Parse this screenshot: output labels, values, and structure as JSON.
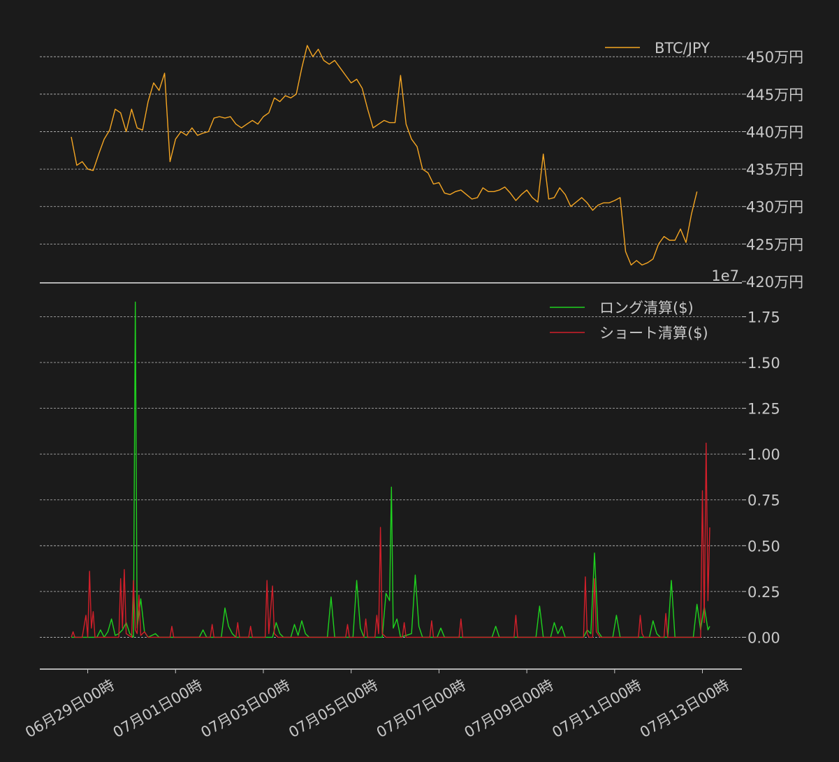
{
  "colors": {
    "background": "#1b1b1b",
    "btc": "#f5a623",
    "long": "#1fd11f",
    "short": "#d11f2a",
    "grid": "#bdbdbd",
    "text": "#c8c8c8"
  },
  "chart_data": [
    {
      "type": "line",
      "title": "",
      "xlabel": "",
      "ylabel": "",
      "x_range_days": [
        "06/28 15:00",
        "07/13 09:00"
      ],
      "ylim": [
        4200000,
        4530000
      ],
      "y_ticks": [
        4200000,
        4250000,
        4300000,
        4350000,
        4400000,
        4450000,
        4500000
      ],
      "y_tick_labels": [
        "420万円",
        "425万円",
        "430万円",
        "435万円",
        "440万円",
        "445万円",
        "450万円"
      ],
      "offset_label": "1e7",
      "grid": true,
      "legend": "top-right",
      "series": [
        {
          "name": "BTC/JPY",
          "x_hours": [
            0,
            3,
            6,
            9,
            12,
            15,
            18,
            21,
            24,
            27,
            30,
            33,
            36,
            39,
            42,
            45,
            48,
            51,
            54,
            57,
            60,
            63,
            66,
            69,
            72,
            75,
            78,
            81,
            84,
            87,
            90,
            93,
            96,
            99,
            102,
            105,
            108,
            111,
            114,
            117,
            120,
            123,
            126,
            129,
            132,
            135,
            138,
            141,
            144,
            147,
            150,
            153,
            156,
            159,
            162,
            165,
            168,
            171,
            174,
            177,
            180,
            183,
            186,
            189,
            192,
            195,
            198,
            201,
            204,
            207,
            210,
            213,
            216,
            219,
            222,
            225,
            228,
            231,
            234,
            237,
            240,
            243,
            246,
            249,
            252,
            255,
            258,
            261,
            264,
            267,
            270,
            273,
            276,
            279,
            282,
            285,
            288,
            291,
            294,
            297,
            300,
            303,
            306,
            309,
            312,
            315,
            318,
            321,
            324,
            327,
            330,
            333,
            336,
            339,
            342
          ],
          "values": [
            4393000,
            4355000,
            4360000,
            4350000,
            4348000,
            4370000,
            4390000,
            4402000,
            4430000,
            4425000,
            4400000,
            4430000,
            4405000,
            4402000,
            4440000,
            4465000,
            4455000,
            4478000,
            4360000,
            4390000,
            4400000,
            4395000,
            4405000,
            4395000,
            4398000,
            4400000,
            4418000,
            4420000,
            4418000,
            4420000,
            4410000,
            4405000,
            4410000,
            4415000,
            4410000,
            4420000,
            4425000,
            4445000,
            4440000,
            4448000,
            4445000,
            4450000,
            4485000,
            4515000,
            4500000,
            4510000,
            4495000,
            4490000,
            4495000,
            4485000,
            4475000,
            4465000,
            4470000,
            4458000,
            4430000,
            4405000,
            4410000,
            4415000,
            4412000,
            4412000,
            4475000,
            4410000,
            4390000,
            4380000,
            4350000,
            4345000,
            4330000,
            4332000,
            4318000,
            4316000,
            4320000,
            4322000,
            4316000,
            4310000,
            4312000,
            4325000,
            4320000,
            4320000,
            4322000,
            4326000,
            4318000,
            4308000,
            4316000,
            4322000,
            4312000,
            4306000,
            4370000,
            4310000,
            4312000,
            4325000,
            4316000,
            4300000,
            4306000,
            4312000,
            4305000,
            4295000,
            4302000,
            4305000,
            4305000,
            4308000,
            4312000,
            4240000,
            4222000,
            4228000,
            4222000,
            4225000,
            4230000,
            4250000,
            4260000,
            4255000,
            4255000,
            4270000,
            4252000,
            4290000,
            4320000
          ]
        }
      ]
    },
    {
      "type": "line",
      "title": "",
      "xlabel": "",
      "ylabel": "",
      "ylim": [
        -0.17,
        1.87
      ],
      "y_ticks": [
        0,
        0.25,
        0.5,
        0.75,
        1.0,
        1.25,
        1.5,
        1.75
      ],
      "y_tick_labels": [
        "0.00",
        "0.25",
        "0.50",
        "0.75",
        "1.00",
        "1.25",
        "1.50",
        "1.75"
      ],
      "grid": true,
      "legend": "top-right",
      "categories": [
        "06月29日00時",
        "07月01日00時",
        "07月03日00時",
        "07月05日00時",
        "07月07日00時",
        "07月09日00時",
        "07月11日00時",
        "07月13日00時"
      ],
      "category_hours": [
        9,
        57,
        105,
        153,
        201,
        249,
        297,
        345
      ],
      "series": [
        {
          "name": "ロング清算($)",
          "color": "long",
          "points": [
            [
              0,
              0
            ],
            [
              14,
              0
            ],
            [
              16,
              0.04
            ],
            [
              18,
              0
            ],
            [
              20,
              0.03
            ],
            [
              22,
              0.1
            ],
            [
              24,
              0.01
            ],
            [
              26,
              0.02
            ],
            [
              28,
              0.04
            ],
            [
              30,
              0.08
            ],
            [
              32,
              0.02
            ],
            [
              34,
              0
            ],
            [
              35,
              1.83
            ],
            [
              36,
              0.05
            ],
            [
              38,
              0.21
            ],
            [
              40,
              0.03
            ],
            [
              42,
              0
            ],
            [
              46,
              0.02
            ],
            [
              48,
              0
            ],
            [
              70,
              0
            ],
            [
              72,
              0.04
            ],
            [
              74,
              0
            ],
            [
              82,
              0
            ],
            [
              84,
              0.16
            ],
            [
              86,
              0.06
            ],
            [
              88,
              0.02
            ],
            [
              90,
              0
            ],
            [
              110,
              0
            ],
            [
              112,
              0.08
            ],
            [
              114,
              0.02
            ],
            [
              116,
              0
            ],
            [
              120,
              0
            ],
            [
              122,
              0.07
            ],
            [
              124,
              0.01
            ],
            [
              126,
              0.09
            ],
            [
              128,
              0.02
            ],
            [
              130,
              0
            ],
            [
              140,
              0
            ],
            [
              142,
              0.22
            ],
            [
              144,
              0
            ],
            [
              154,
              0
            ],
            [
              156,
              0.31
            ],
            [
              158,
              0.05
            ],
            [
              160,
              0
            ],
            [
              170,
              0
            ],
            [
              172,
              0.24
            ],
            [
              174,
              0.2
            ],
            [
              175,
              0.82
            ],
            [
              176,
              0.05
            ],
            [
              178,
              0.1
            ],
            [
              180,
              0
            ],
            [
              186,
              0.02
            ],
            [
              188,
              0.34
            ],
            [
              190,
              0.06
            ],
            [
              192,
              0
            ],
            [
              200,
              0
            ],
            [
              202,
              0.05
            ],
            [
              204,
              0
            ],
            [
              230,
              0
            ],
            [
              232,
              0.06
            ],
            [
              234,
              0
            ],
            [
              254,
              0
            ],
            [
              256,
              0.17
            ],
            [
              258,
              0
            ],
            [
              262,
              0
            ],
            [
              264,
              0.08
            ],
            [
              266,
              0.02
            ],
            [
              268,
              0.06
            ],
            [
              270,
              0
            ],
            [
              280,
              0
            ],
            [
              282,
              0.04
            ],
            [
              284,
              0.02
            ],
            [
              286,
              0.46
            ],
            [
              288,
              0.03
            ],
            [
              290,
              0
            ],
            [
              296,
              0
            ],
            [
              298,
              0.12
            ],
            [
              300,
              0
            ],
            [
              316,
              0
            ],
            [
              318,
              0.09
            ],
            [
              320,
              0.02
            ],
            [
              322,
              0
            ],
            [
              326,
              0
            ],
            [
              328,
              0.31
            ],
            [
              330,
              0
            ],
            [
              340,
              0
            ],
            [
              342,
              0.18
            ],
            [
              344,
              0.04
            ],
            [
              346,
              0.17
            ],
            [
              348,
              0.04
            ],
            [
              349,
              0.06
            ]
          ]
        },
        {
          "name": "ショート清算($)",
          "color": "short",
          "points": [
            [
              0,
              0
            ],
            [
              1,
              0.03
            ],
            [
              2,
              0
            ],
            [
              6,
              0
            ],
            [
              8,
              0.12
            ],
            [
              9,
              0
            ],
            [
              10,
              0.36
            ],
            [
              11,
              0.05
            ],
            [
              12,
              0.14
            ],
            [
              13,
              0
            ],
            [
              26,
              0
            ],
            [
              27,
              0.32
            ],
            [
              28,
              0.05
            ],
            [
              29,
              0.37
            ],
            [
              30,
              0.02
            ],
            [
              33,
              0
            ],
            [
              34,
              0.31
            ],
            [
              35,
              0.04
            ],
            [
              36,
              0.02
            ],
            [
              37,
              0.23
            ],
            [
              38,
              0.01
            ],
            [
              40,
              0.03
            ],
            [
              42,
              0
            ],
            [
              54,
              0
            ],
            [
              55,
              0.06
            ],
            [
              56,
              0
            ],
            [
              76,
              0
            ],
            [
              77,
              0.07
            ],
            [
              78,
              0
            ],
            [
              90,
              0
            ],
            [
              91,
              0.08
            ],
            [
              92,
              0
            ],
            [
              97,
              0
            ],
            [
              98,
              0.06
            ],
            [
              99,
              0
            ],
            [
              106,
              0
            ],
            [
              107,
              0.31
            ],
            [
              108,
              0.02
            ],
            [
              110,
              0.28
            ],
            [
              111,
              0.02
            ],
            [
              113,
              0
            ],
            [
              150,
              0
            ],
            [
              151,
              0.07
            ],
            [
              152,
              0
            ],
            [
              160,
              0
            ],
            [
              161,
              0.1
            ],
            [
              162,
              0
            ],
            [
              166,
              0
            ],
            [
              167,
              0.12
            ],
            [
              168,
              0.02
            ],
            [
              169,
              0.6
            ],
            [
              170,
              0.02
            ],
            [
              172,
              0
            ],
            [
              181,
              0
            ],
            [
              182,
              0.08
            ],
            [
              183,
              0
            ],
            [
              196,
              0
            ],
            [
              197,
              0.09
            ],
            [
              198,
              0
            ],
            [
              212,
              0
            ],
            [
              213,
              0.1
            ],
            [
              214,
              0
            ],
            [
              242,
              0
            ],
            [
              243,
              0.12
            ],
            [
              244,
              0
            ],
            [
              280,
              0
            ],
            [
              281,
              0.33
            ],
            [
              282,
              0.02
            ],
            [
              283,
              0
            ],
            [
              285,
              0
            ],
            [
              286,
              0.32
            ],
            [
              287,
              0.03
            ],
            [
              289,
              0
            ],
            [
              310,
              0
            ],
            [
              311,
              0.12
            ],
            [
              312,
              0.02
            ],
            [
              313,
              0
            ],
            [
              324,
              0
            ],
            [
              325,
              0.13
            ],
            [
              326,
              0
            ],
            [
              344,
              0
            ],
            [
              345,
              0.8
            ],
            [
              346,
              0.08
            ],
            [
              347,
              1.06
            ],
            [
              348,
              0.2
            ],
            [
              349,
              0.6
            ]
          ]
        }
      ]
    }
  ]
}
